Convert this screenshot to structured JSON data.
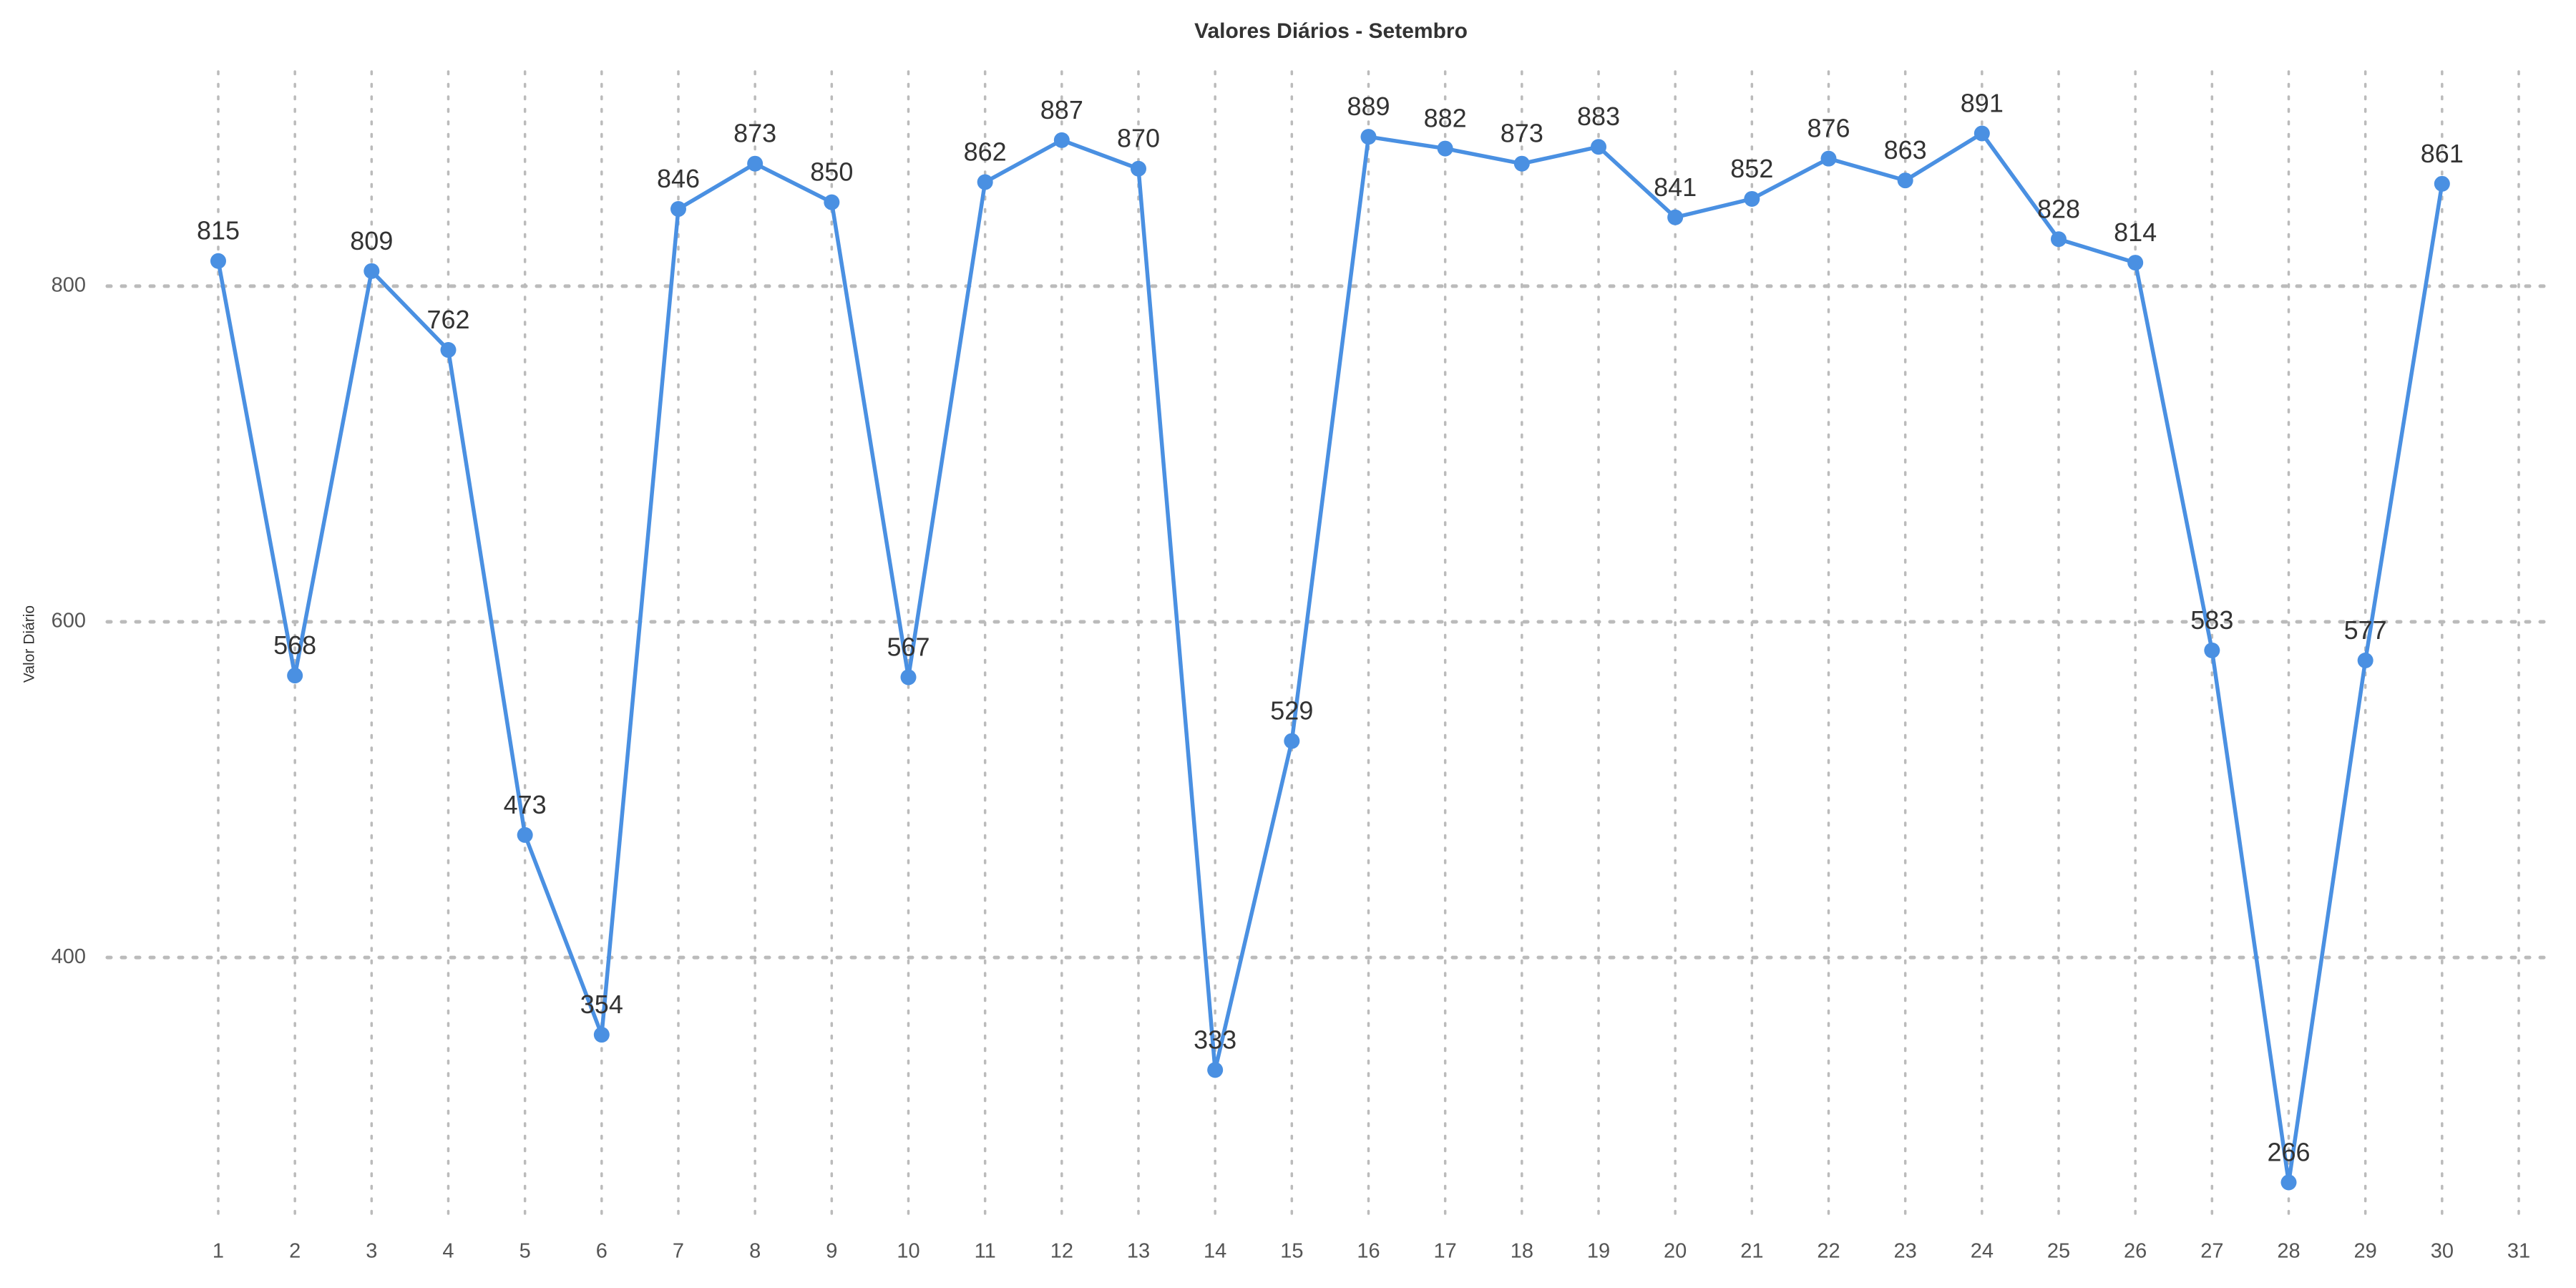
{
  "chart_data": {
    "type": "line",
    "title": "Valores Diários - Setembro",
    "xlabel": "",
    "ylabel": "Valor Diário",
    "x": [
      1,
      2,
      3,
      4,
      5,
      6,
      7,
      8,
      9,
      10,
      11,
      12,
      13,
      14,
      15,
      16,
      17,
      18,
      19,
      20,
      21,
      22,
      23,
      24,
      25,
      26,
      27,
      28,
      29,
      30
    ],
    "x_ticks": [
      "1",
      "2",
      "3",
      "4",
      "5",
      "6",
      "7",
      "8",
      "9",
      "10",
      "11",
      "12",
      "13",
      "14",
      "15",
      "16",
      "17",
      "18",
      "19",
      "20",
      "21",
      "22",
      "23",
      "24",
      "25",
      "26",
      "27",
      "28",
      "29",
      "30",
      "31"
    ],
    "y_ticks": [
      400,
      600,
      800
    ],
    "xlim": [
      1,
      31
    ],
    "ylim": [
      250,
      930
    ],
    "series": [
      {
        "values": [
          815,
          568,
          809,
          762,
          473,
          354,
          846,
          873,
          850,
          567,
          862,
          887,
          870,
          333,
          529,
          889,
          882,
          873,
          883,
          841,
          852,
          876,
          863,
          891,
          828,
          814,
          583,
          266,
          577,
          861
        ],
        "labels": [
          "815",
          "568",
          "809",
          "762",
          "473",
          "354",
          "846",
          "873",
          "850",
          "567",
          "862",
          "887",
          "870",
          "333",
          "529",
          "889",
          "882",
          "873",
          "883",
          "841",
          "852",
          "876",
          "863",
          "891",
          "828",
          "814",
          "583",
          "266",
          "577",
          "861"
        ],
        "color": "#4a90e2"
      }
    ],
    "grid": true,
    "legend": "none"
  }
}
